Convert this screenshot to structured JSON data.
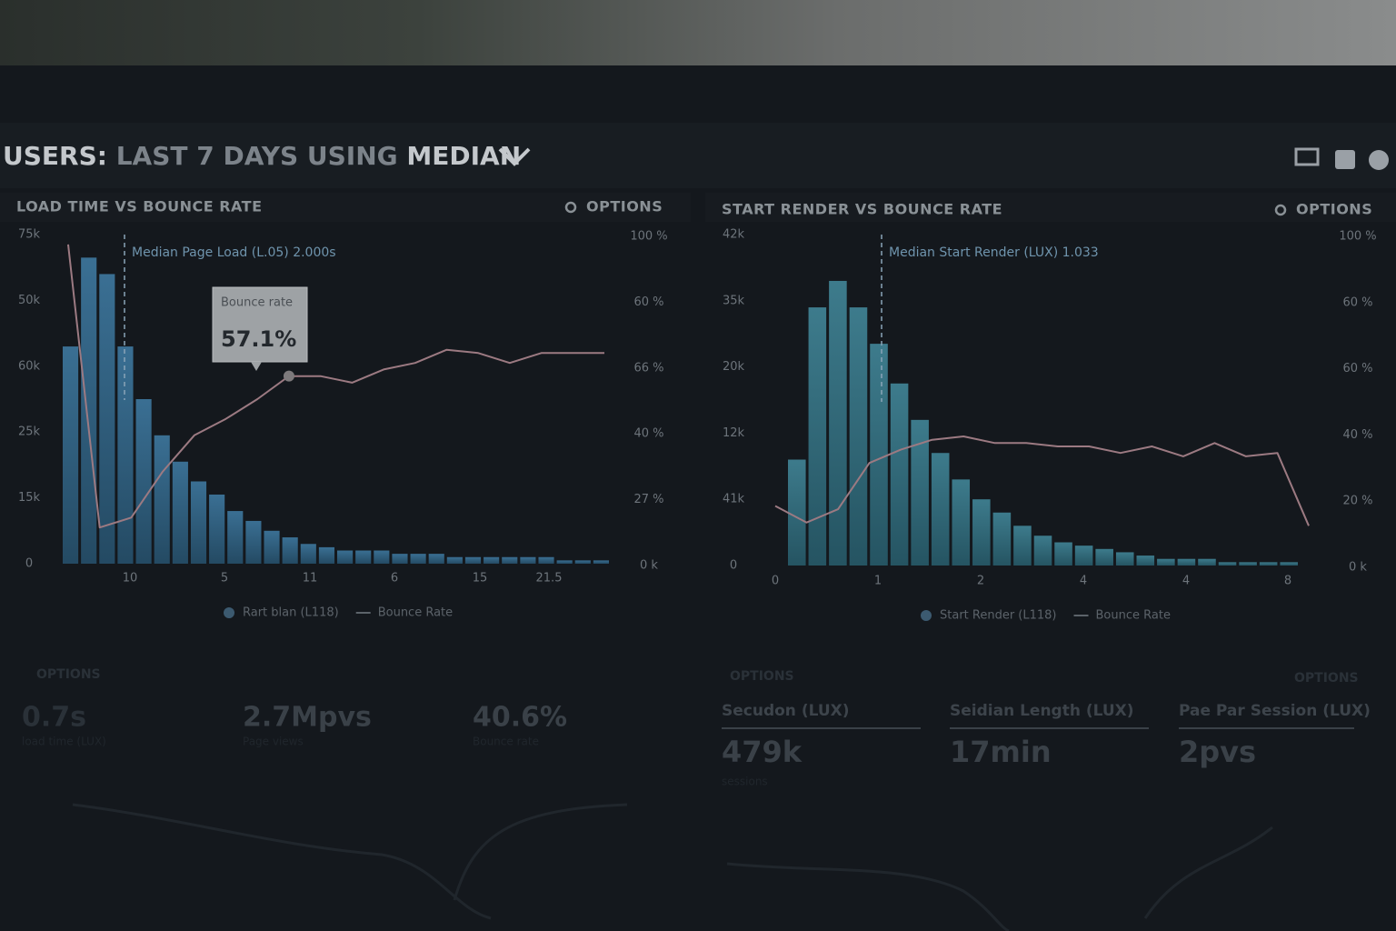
{
  "header": {
    "title_parts": [
      "USERS:",
      "LAST 7 DAYS",
      "USING",
      "MEDIAN"
    ]
  },
  "panels": [
    {
      "title": "LOAD TIME VS BOUNCE RATE",
      "options": "OPTIONS",
      "y_labels": [
        "75k",
        "50k",
        "60k",
        "25k",
        "15k",
        "0"
      ],
      "y2_labels": [
        "100 %",
        "60 %",
        "66 %",
        "40 %",
        "27 %",
        "0 k"
      ],
      "x_labels": [
        "10",
        "5",
        "11",
        "6",
        "15",
        "21.5"
      ],
      "annotation": "Median Page Load (L.05) 2.000s",
      "tooltip": {
        "label": "Bounce rate",
        "value": "57.1%"
      },
      "legend": [
        "Rart blan (L118)",
        "Bounce Rate"
      ],
      "ylim": [
        0,
        100
      ],
      "bars": [
        66,
        93,
        88,
        66,
        50,
        39,
        31,
        25,
        21,
        16,
        13,
        10,
        8,
        6,
        5,
        4,
        4,
        4,
        3,
        3,
        3,
        2,
        2,
        2,
        2,
        2,
        2,
        1,
        1,
        1
      ],
      "line": [
        97,
        11,
        14,
        28,
        39,
        44,
        50,
        57,
        57,
        55,
        59,
        61,
        65,
        64,
        61,
        64,
        64,
        64
      ]
    },
    {
      "title": "START RENDER VS BOUNCE RATE",
      "options": "OPTIONS",
      "y_labels": [
        "42k",
        "35k",
        "20k",
        "12k",
        "41k",
        "0"
      ],
      "y2_labels": [
        "100 %",
        "60 %",
        "60 %",
        "40 %",
        "20 %",
        "0 k"
      ],
      "x_labels": [
        "0",
        "1",
        "2",
        "4",
        "4",
        "8"
      ],
      "annotation": "Median Start Render (LUX) 1.033",
      "legend": [
        "Start Render (L118)",
        "Bounce Rate"
      ],
      "ylim": [
        0,
        100
      ],
      "bars": [
        32,
        78,
        86,
        78,
        67,
        55,
        44,
        34,
        26,
        20,
        16,
        12,
        9,
        7,
        6,
        5,
        4,
        3,
        2,
        2,
        2,
        1,
        1,
        1,
        1
      ],
      "line": [
        18,
        13,
        17,
        31,
        35,
        38,
        39,
        37,
        37,
        36,
        36,
        34,
        36,
        33,
        37,
        33,
        34,
        12
      ]
    }
  ],
  "bottom_left": {
    "options": "OPTIONS",
    "stats": [
      {
        "value": "0.7s",
        "label": "load time (LUX)"
      },
      {
        "value": "2.7Mpvs",
        "label": "Page views"
      },
      {
        "value": "40.6%",
        "label": "Bounce rate"
      }
    ]
  },
  "bottom_right": {
    "options": [
      "OPTIONS",
      "OPTIONS"
    ],
    "stats": [
      {
        "title": "Secudon (LUX)",
        "value": "479k",
        "label": "sessions"
      },
      {
        "title": "Seidian Length (LUX)",
        "value": "17min"
      },
      {
        "title": "Pae Par Session (LUX)",
        "value": "2pvs"
      }
    ]
  }
}
